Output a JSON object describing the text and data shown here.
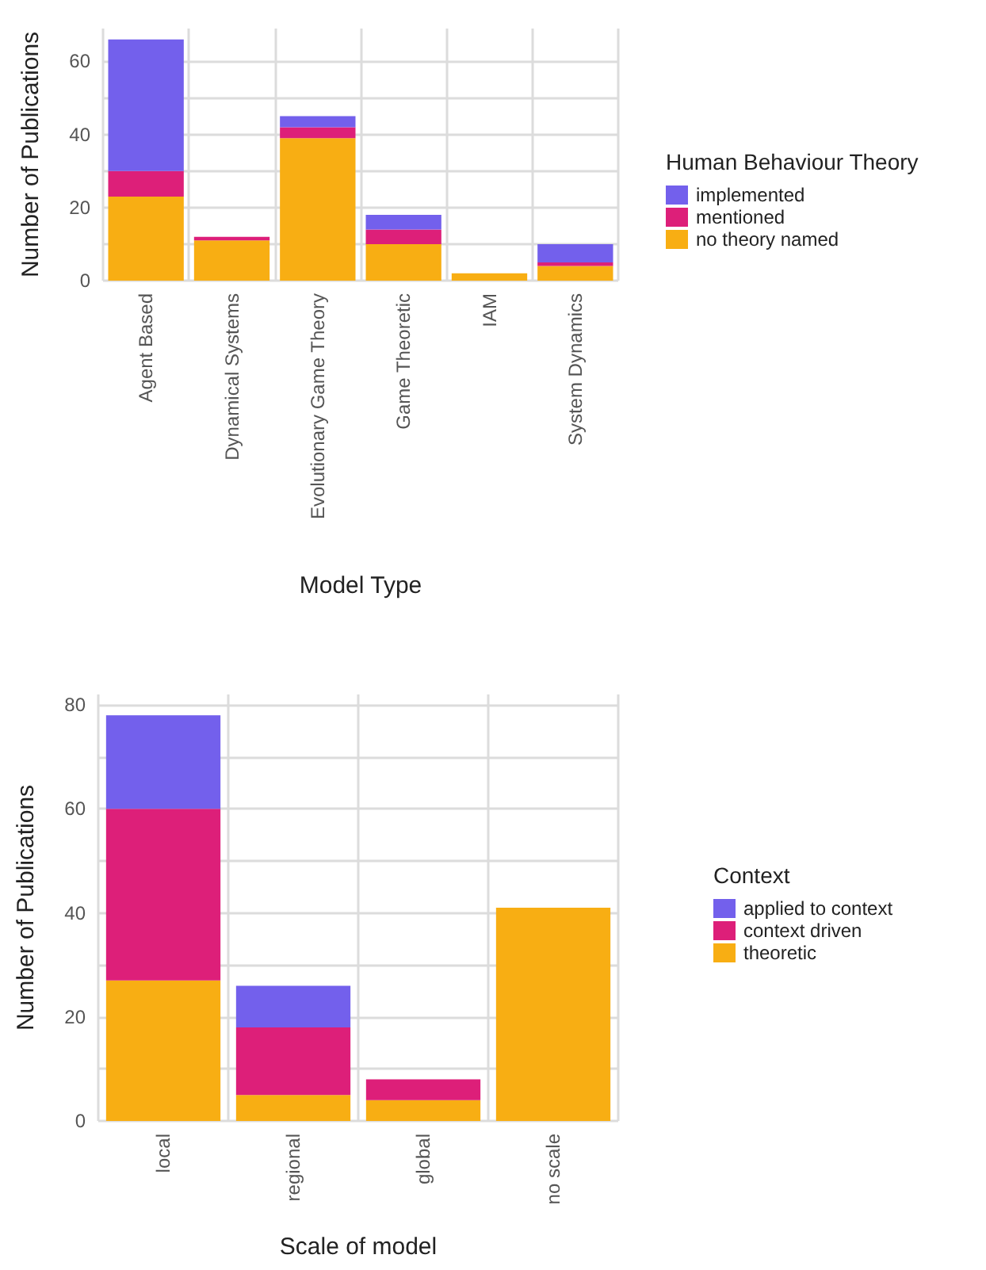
{
  "chart_data": [
    {
      "type": "bar",
      "stacked": true,
      "xlabel": "Model Type",
      "ylabel": "Number of Publications",
      "legend_title": "Human Behaviour Theory",
      "legend": "right",
      "grid": true,
      "categories": [
        "Agent Based",
        "Dynamical Systems",
        "Evolutionary Game Theory",
        "Game Theoretic",
        "IAM",
        "System Dynamics"
      ],
      "ylim": [
        0,
        69
      ],
      "yticks": [
        0,
        {
          "value": 10,
          "label": null
        },
        20,
        {
          "value": 30,
          "label": null
        },
        40,
        {
          "value": 50,
          "label": null
        },
        60
      ],
      "series": [
        {
          "name": "no theory named",
          "color": "#f8ae13",
          "values": [
            23,
            11,
            39,
            10,
            2,
            4
          ]
        },
        {
          "name": "mentioned",
          "color": "#dd1f79",
          "values": [
            7,
            1,
            3,
            4,
            0,
            1
          ]
        },
        {
          "name": "implemented",
          "color": "#7360ec",
          "values": [
            36,
            0,
            3,
            4,
            0,
            5
          ]
        }
      ]
    },
    {
      "type": "bar",
      "stacked": true,
      "xlabel": "Scale of model",
      "ylabel": "Number of Publications",
      "legend_title": "Context",
      "legend": "right",
      "grid": true,
      "categories": [
        "local",
        "regional",
        "global",
        "no scale"
      ],
      "ylim": [
        0,
        82
      ],
      "yticks": [
        0,
        {
          "value": 10,
          "label": null
        },
        20,
        {
          "value": 30,
          "label": null
        },
        40,
        {
          "value": 50,
          "label": null
        },
        60,
        {
          "value": 70,
          "label": null
        },
        80
      ],
      "series": [
        {
          "name": "theoretic",
          "color": "#f8ae13",
          "values": [
            27,
            5,
            4,
            41
          ]
        },
        {
          "name": "context driven",
          "color": "#dd1f79",
          "values": [
            33,
            13,
            4,
            0
          ]
        },
        {
          "name": "applied to context",
          "color": "#7360ec",
          "values": [
            18,
            8,
            0,
            0
          ]
        }
      ]
    }
  ]
}
